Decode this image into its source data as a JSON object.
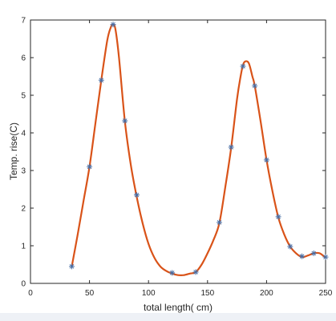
{
  "chart_data": {
    "type": "line",
    "title": "",
    "xlabel": "total length( cm)",
    "ylabel": "Temp. rise(C)",
    "xlim": [
      0,
      250
    ],
    "ylim": [
      0,
      7
    ],
    "xticks": [
      0,
      50,
      100,
      150,
      200,
      250
    ],
    "yticks": [
      0,
      1,
      2,
      3,
      4,
      5,
      6,
      7
    ],
    "grid": false,
    "series": [
      {
        "role": "fitted-curve",
        "color": "#d95319",
        "x": [
          35,
          40,
          45,
          50,
          55,
          60,
          65,
          68,
          70,
          72,
          75,
          80,
          85,
          90,
          95,
          100,
          105,
          110,
          115,
          120,
          125,
          130,
          135,
          140,
          145,
          150,
          155,
          160,
          165,
          170,
          175,
          178,
          180,
          182,
          185,
          188,
          190,
          195,
          200,
          205,
          210,
          215,
          220,
          225,
          230,
          235,
          240,
          245,
          250
        ],
        "y": [
          0.45,
          1.3,
          2.2,
          3.1,
          4.25,
          5.4,
          6.45,
          6.8,
          6.88,
          6.75,
          6.0,
          4.3,
          3.15,
          2.3,
          1.6,
          1.05,
          0.68,
          0.45,
          0.33,
          0.26,
          0.22,
          0.22,
          0.26,
          0.3,
          0.5,
          0.8,
          1.15,
          1.6,
          2.55,
          3.6,
          4.9,
          5.5,
          5.8,
          5.9,
          5.85,
          5.5,
          5.25,
          4.3,
          3.28,
          2.45,
          1.75,
          1.3,
          0.98,
          0.8,
          0.7,
          0.74,
          0.8,
          0.8,
          0.68
        ]
      },
      {
        "role": "measured-points",
        "color": "#4a6fa5",
        "marker": "asterisk",
        "x": [
          35,
          50,
          60,
          70,
          80,
          90,
          120,
          140,
          160,
          170,
          180,
          190,
          200,
          210,
          220,
          230,
          240,
          250
        ],
        "y": [
          0.45,
          3.1,
          5.4,
          6.88,
          4.32,
          2.35,
          0.28,
          0.3,
          1.62,
          3.62,
          5.77,
          5.25,
          3.28,
          1.77,
          0.98,
          0.72,
          0.8,
          0.7
        ]
      }
    ]
  }
}
